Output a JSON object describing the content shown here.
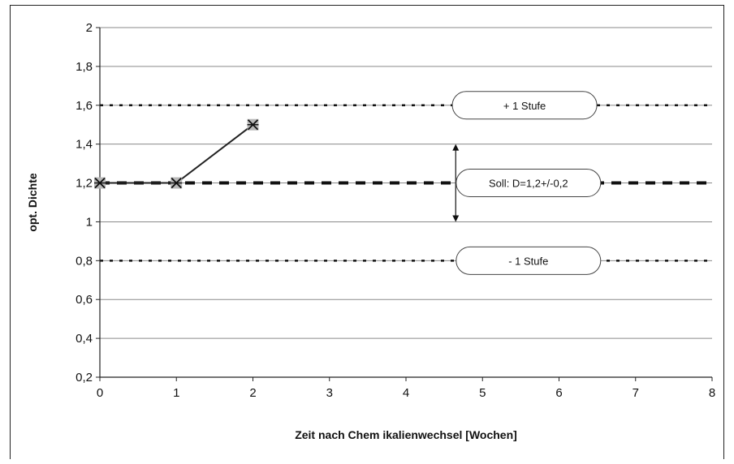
{
  "chart_data": {
    "type": "line",
    "xlabel": "Zeit nach Chem ikalienwechsel [Wochen]",
    "ylabel": "opt. Dichte",
    "xlim": [
      0,
      8
    ],
    "ylim": [
      0.2,
      2
    ],
    "x_ticks": [
      "0",
      "1",
      "2",
      "3",
      "4",
      "5",
      "6",
      "7",
      "8"
    ],
    "y_ticks": [
      "0,2",
      "0,4",
      "0,6",
      "0,8",
      "1",
      "1,2",
      "1,4",
      "1,6",
      "1,8",
      "2"
    ],
    "grid": true,
    "series": [
      {
        "x": [
          0,
          1,
          2
        ],
        "y": [
          1.2,
          1.2,
          1.5
        ],
        "color": "#222222",
        "marker": "star-square"
      }
    ],
    "reference_lines": [
      {
        "y": 1.6,
        "style": "dotted"
      },
      {
        "y": 1.2,
        "style": "dashed-bold"
      },
      {
        "y": 0.8,
        "style": "dotted"
      }
    ],
    "annotations": [
      {
        "text": "+ 1 Stufe",
        "x": 5.55,
        "y": 1.6
      },
      {
        "text": "Soll: D=1,2+/-0,2",
        "x": 5.6,
        "y": 1.2
      },
      {
        "text": "- 1 Stufe",
        "x": 5.6,
        "y": 0.8
      }
    ],
    "range_arrow": {
      "x": 4.65,
      "y_from": 1.0,
      "y_to": 1.4
    }
  }
}
